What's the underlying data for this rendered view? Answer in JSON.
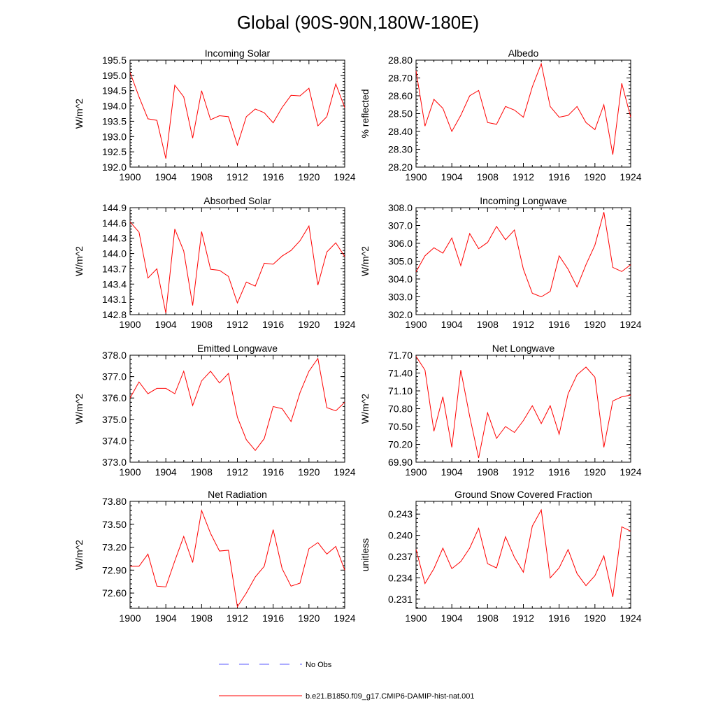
{
  "title": "Global (90S-90N,180W-180E)",
  "legend": [
    {
      "label": "No Obs",
      "color": "#5a5aff",
      "dash": true
    },
    {
      "label": "b.e21.B1850.f09_g17.CMIP6-DAMIP-hist-nat.001",
      "color": "#ff0000",
      "dash": false
    }
  ],
  "chart_data": [
    {
      "type": "line",
      "title": "Incoming Solar",
      "ylabel": "W/m^2",
      "xlim": [
        1900,
        1924
      ],
      "ylim": [
        192.0,
        195.5
      ],
      "xticks": [
        1900,
        1904,
        1908,
        1912,
        1916,
        1920,
        1924
      ],
      "yticks": [
        "192.0",
        "192.5",
        "193.0",
        "193.5",
        "194.0",
        "194.5",
        "195.0",
        "195.5"
      ],
      "series": [
        {
          "color": "#ff0000",
          "x": [
            1900,
            1901,
            1902,
            1903,
            1904,
            1905,
            1906,
            1907,
            1908,
            1909,
            1910,
            1911,
            1912,
            1913,
            1914,
            1915,
            1916,
            1917,
            1918,
            1919,
            1920,
            1921,
            1922,
            1923,
            1924
          ],
          "values": [
            195.1,
            194.3,
            193.58,
            193.53,
            192.28,
            194.68,
            194.3,
            192.95,
            194.5,
            193.55,
            193.68,
            193.65,
            192.72,
            193.65,
            193.9,
            193.78,
            193.45,
            193.95,
            194.35,
            194.33,
            194.58,
            193.35,
            193.65,
            194.72,
            193.95
          ]
        }
      ]
    },
    {
      "type": "line",
      "title": "Albedo",
      "ylabel": "% reflected",
      "xlim": [
        1900,
        1924
      ],
      "ylim": [
        28.2,
        28.8
      ],
      "xticks": [
        1900,
        1904,
        1908,
        1912,
        1916,
        1920,
        1924
      ],
      "yticks": [
        "28.20",
        "28.30",
        "28.40",
        "28.50",
        "28.60",
        "28.70",
        "28.80"
      ],
      "series": [
        {
          "color": "#ff0000",
          "x": [
            1900,
            1901,
            1902,
            1903,
            1904,
            1905,
            1906,
            1907,
            1908,
            1909,
            1910,
            1911,
            1912,
            1913,
            1914,
            1915,
            1916,
            1917,
            1918,
            1919,
            1920,
            1921,
            1922,
            1923,
            1924
          ],
          "values": [
            28.74,
            28.43,
            28.58,
            28.53,
            28.4,
            28.49,
            28.6,
            28.63,
            28.45,
            28.44,
            28.54,
            28.52,
            28.48,
            28.65,
            28.78,
            28.54,
            28.48,
            28.49,
            28.54,
            28.45,
            28.41,
            28.55,
            28.27,
            28.67,
            28.48
          ]
        }
      ]
    },
    {
      "type": "line",
      "title": "Absorbed Solar",
      "ylabel": "W/m^2",
      "xlim": [
        1900,
        1924
      ],
      "ylim": [
        142.8,
        144.9
      ],
      "xticks": [
        1900,
        1904,
        1908,
        1912,
        1916,
        1920,
        1924
      ],
      "yticks": [
        "142.8",
        "143.1",
        "143.4",
        "143.7",
        "144.0",
        "144.3",
        "144.6",
        "144.9"
      ],
      "series": [
        {
          "color": "#ff0000",
          "x": [
            1900,
            1901,
            1902,
            1903,
            1904,
            1905,
            1906,
            1907,
            1908,
            1909,
            1910,
            1911,
            1912,
            1913,
            1914,
            1915,
            1916,
            1917,
            1918,
            1919,
            1920,
            1921,
            1922,
            1923,
            1924
          ],
          "values": [
            144.62,
            144.42,
            143.52,
            143.7,
            142.83,
            144.48,
            144.05,
            142.98,
            144.43,
            143.69,
            143.67,
            143.55,
            143.03,
            143.44,
            143.36,
            143.81,
            143.79,
            143.95,
            144.06,
            144.25,
            144.54,
            143.38,
            144.03,
            144.21,
            143.94
          ]
        }
      ]
    },
    {
      "type": "line",
      "title": "Incoming Longwave",
      "ylabel": "W/m^2",
      "xlim": [
        1900,
        1924
      ],
      "ylim": [
        302.0,
        308.0
      ],
      "xticks": [
        1900,
        1904,
        1908,
        1912,
        1916,
        1920,
        1924
      ],
      "yticks": [
        "302.0",
        "303.0",
        "304.0",
        "305.0",
        "306.0",
        "307.0",
        "308.0"
      ],
      "series": [
        {
          "color": "#ff0000",
          "x": [
            1900,
            1901,
            1902,
            1903,
            1904,
            1905,
            1906,
            1907,
            1908,
            1909,
            1910,
            1911,
            1912,
            1913,
            1914,
            1915,
            1916,
            1917,
            1918,
            1919,
            1920,
            1921,
            1922,
            1923,
            1924
          ],
          "values": [
            304.4,
            305.3,
            305.75,
            305.45,
            306.3,
            304.75,
            306.55,
            305.7,
            306.05,
            306.95,
            306.2,
            306.75,
            304.55,
            303.2,
            303.0,
            303.3,
            305.3,
            304.55,
            303.55,
            304.8,
            305.9,
            307.75,
            304.65,
            304.42,
            304.8
          ]
        }
      ]
    },
    {
      "type": "line",
      "title": "Emitted Longwave",
      "ylabel": "W/m^2",
      "xlim": [
        1900,
        1924
      ],
      "ylim": [
        373.0,
        378.0
      ],
      "xticks": [
        1900,
        1904,
        1908,
        1912,
        1916,
        1920,
        1924
      ],
      "yticks": [
        "373.0",
        "374.0",
        "375.0",
        "376.0",
        "377.0",
        "378.0"
      ],
      "series": [
        {
          "color": "#ff0000",
          "x": [
            1900,
            1901,
            1902,
            1903,
            1904,
            1905,
            1906,
            1907,
            1908,
            1909,
            1910,
            1911,
            1912,
            1913,
            1914,
            1915,
            1916,
            1917,
            1918,
            1919,
            1920,
            1921,
            1922,
            1923,
            1924
          ],
          "values": [
            376.0,
            376.75,
            376.2,
            376.45,
            376.45,
            376.2,
            377.25,
            375.65,
            376.8,
            377.25,
            376.7,
            377.15,
            375.1,
            374.05,
            373.55,
            374.1,
            375.6,
            375.5,
            374.9,
            376.25,
            377.25,
            377.85,
            375.55,
            375.4,
            375.8
          ]
        }
      ]
    },
    {
      "type": "line",
      "title": "Net Longwave",
      "ylabel": "W/m^2",
      "xlim": [
        1900,
        1924
      ],
      "ylim": [
        69.9,
        71.7
      ],
      "xticks": [
        1900,
        1904,
        1908,
        1912,
        1916,
        1920,
        1924
      ],
      "yticks": [
        "69.90",
        "70.20",
        "70.50",
        "70.80",
        "71.10",
        "71.40",
        "71.70"
      ],
      "series": [
        {
          "color": "#ff0000",
          "x": [
            1900,
            1901,
            1902,
            1903,
            1904,
            1905,
            1906,
            1907,
            1908,
            1909,
            1910,
            1911,
            1912,
            1913,
            1914,
            1915,
            1916,
            1917,
            1918,
            1919,
            1920,
            1921,
            1922,
            1923,
            1924
          ],
          "values": [
            71.68,
            71.45,
            70.42,
            71.0,
            70.15,
            71.45,
            70.67,
            69.97,
            70.73,
            70.3,
            70.5,
            70.4,
            70.6,
            70.85,
            70.55,
            70.85,
            70.37,
            71.05,
            71.37,
            71.5,
            71.33,
            70.15,
            70.93,
            71.0,
            71.03
          ]
        }
      ]
    },
    {
      "type": "line",
      "title": "Net Radiation",
      "ylabel": "W/m^2",
      "xlim": [
        1900,
        1924
      ],
      "ylim": [
        72.4,
        73.8
      ],
      "xticks": [
        1900,
        1904,
        1908,
        1912,
        1916,
        1920,
        1924
      ],
      "yticks": [
        "72.60",
        "72.90",
        "73.20",
        "73.50",
        "73.80"
      ],
      "series": [
        {
          "color": "#ff0000",
          "x": [
            1900,
            1901,
            1902,
            1903,
            1904,
            1905,
            1906,
            1907,
            1908,
            1909,
            1910,
            1911,
            1912,
            1913,
            1914,
            1915,
            1916,
            1917,
            1918,
            1919,
            1920,
            1921,
            1922,
            1923,
            1924
          ],
          "values": [
            72.95,
            72.95,
            73.11,
            72.69,
            72.68,
            73.02,
            73.34,
            73.0,
            73.68,
            73.38,
            73.15,
            73.16,
            72.42,
            72.6,
            72.81,
            72.95,
            73.43,
            72.92,
            72.69,
            72.73,
            73.18,
            73.26,
            73.11,
            73.21,
            72.9
          ]
        }
      ]
    },
    {
      "type": "line",
      "title": "Ground Snow Covered Fraction",
      "ylabel": "unitless",
      "xlim": [
        1900,
        1924
      ],
      "ylim": [
        0.2297,
        0.2448
      ],
      "xticks": [
        1900,
        1904,
        1908,
        1912,
        1916,
        1920,
        1924
      ],
      "yticks": [
        "0.231",
        "0.234",
        "0.237",
        "0.240",
        "0.243"
      ],
      "series": [
        {
          "color": "#ff0000",
          "x": [
            1900,
            1901,
            1902,
            1903,
            1904,
            1905,
            1906,
            1907,
            1908,
            1909,
            1910,
            1911,
            1912,
            1913,
            1914,
            1915,
            1916,
            1917,
            1918,
            1919,
            1920,
            1921,
            1922,
            1923,
            1924
          ],
          "values": [
            0.238,
            0.2332,
            0.2353,
            0.2382,
            0.2353,
            0.2363,
            0.2382,
            0.241,
            0.236,
            0.2354,
            0.2398,
            0.2369,
            0.2348,
            0.2413,
            0.2436,
            0.234,
            0.2354,
            0.238,
            0.2346,
            0.2329,
            0.2343,
            0.2371,
            0.2313,
            0.2412,
            0.2406
          ]
        }
      ]
    }
  ]
}
